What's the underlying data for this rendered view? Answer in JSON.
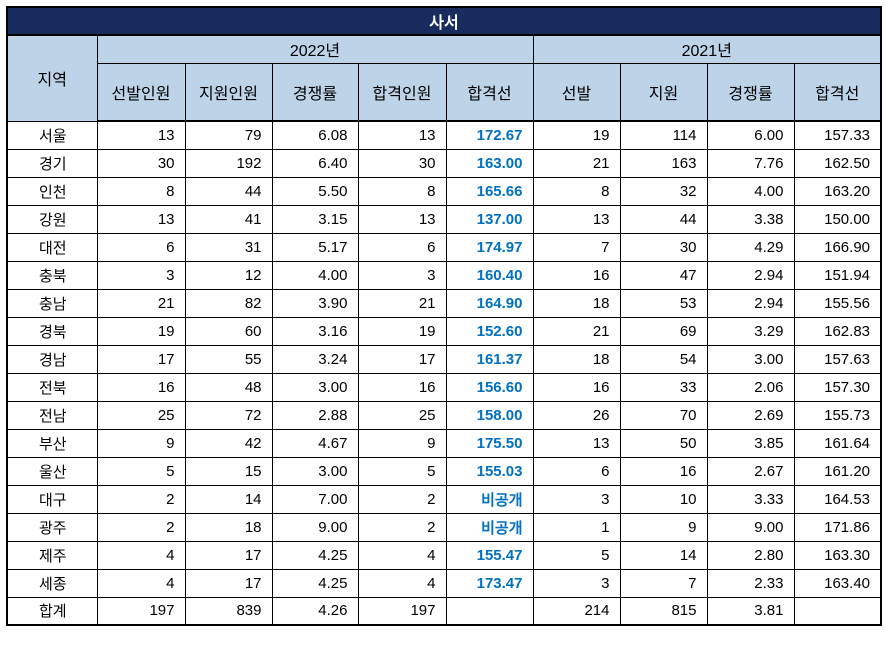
{
  "title": "사서",
  "colors": {
    "title_bg": "#172b5e",
    "title_text": "#ffffff",
    "header_bg": "#bdd3e8",
    "accent_blue": "#0070c0",
    "border": "#000000"
  },
  "chart_data": {
    "type": "table",
    "title": "사서",
    "col_groups": [
      {
        "label": "지역",
        "span": 1
      },
      {
        "label": "2022년",
        "span": 5
      },
      {
        "label": "2021년",
        "span": 4
      }
    ],
    "columns": [
      "지역",
      "선발인원",
      "지원인원",
      "경쟁률",
      "합격인원",
      "합격선",
      "선발",
      "지원",
      "경쟁률",
      "합격선"
    ],
    "rows": [
      [
        "서울",
        "13",
        "79",
        "6.08",
        "13",
        "172.67",
        "19",
        "114",
        "6.00",
        "157.33"
      ],
      [
        "경기",
        "30",
        "192",
        "6.40",
        "30",
        "163.00",
        "21",
        "163",
        "7.76",
        "162.50"
      ],
      [
        "인천",
        "8",
        "44",
        "5.50",
        "8",
        "165.66",
        "8",
        "32",
        "4.00",
        "163.20"
      ],
      [
        "강원",
        "13",
        "41",
        "3.15",
        "13",
        "137.00",
        "13",
        "44",
        "3.38",
        "150.00"
      ],
      [
        "대전",
        "6",
        "31",
        "5.17",
        "6",
        "174.97",
        "7",
        "30",
        "4.29",
        "166.90"
      ],
      [
        "충북",
        "3",
        "12",
        "4.00",
        "3",
        "160.40",
        "16",
        "47",
        "2.94",
        "151.94"
      ],
      [
        "충남",
        "21",
        "82",
        "3.90",
        "21",
        "164.90",
        "18",
        "53",
        "2.94",
        "155.56"
      ],
      [
        "경북",
        "19",
        "60",
        "3.16",
        "19",
        "152.60",
        "21",
        "69",
        "3.29",
        "162.83"
      ],
      [
        "경남",
        "17",
        "55",
        "3.24",
        "17",
        "161.37",
        "18",
        "54",
        "3.00",
        "157.63"
      ],
      [
        "전북",
        "16",
        "48",
        "3.00",
        "16",
        "156.60",
        "16",
        "33",
        "2.06",
        "157.30"
      ],
      [
        "전남",
        "25",
        "72",
        "2.88",
        "25",
        "158.00",
        "26",
        "70",
        "2.69",
        "155.73"
      ],
      [
        "부산",
        "9",
        "42",
        "4.67",
        "9",
        "175.50",
        "13",
        "50",
        "3.85",
        "161.64"
      ],
      [
        "울산",
        "5",
        "15",
        "3.00",
        "5",
        "155.03",
        "6",
        "16",
        "2.67",
        "161.20"
      ],
      [
        "대구",
        "2",
        "14",
        "7.00",
        "2",
        "비공개",
        "3",
        "10",
        "3.33",
        "164.53"
      ],
      [
        "광주",
        "2",
        "18",
        "9.00",
        "2",
        "비공개",
        "1",
        "9",
        "9.00",
        "171.86"
      ],
      [
        "제주",
        "4",
        "17",
        "4.25",
        "4",
        "155.47",
        "5",
        "14",
        "2.80",
        "163.30"
      ],
      [
        "세종",
        "4",
        "17",
        "4.25",
        "4",
        "173.47",
        "3",
        "7",
        "2.33",
        "163.40"
      ],
      [
        "합계",
        "197",
        "839",
        "4.26",
        "197",
        "",
        "214",
        "815",
        "3.81",
        ""
      ]
    ]
  }
}
